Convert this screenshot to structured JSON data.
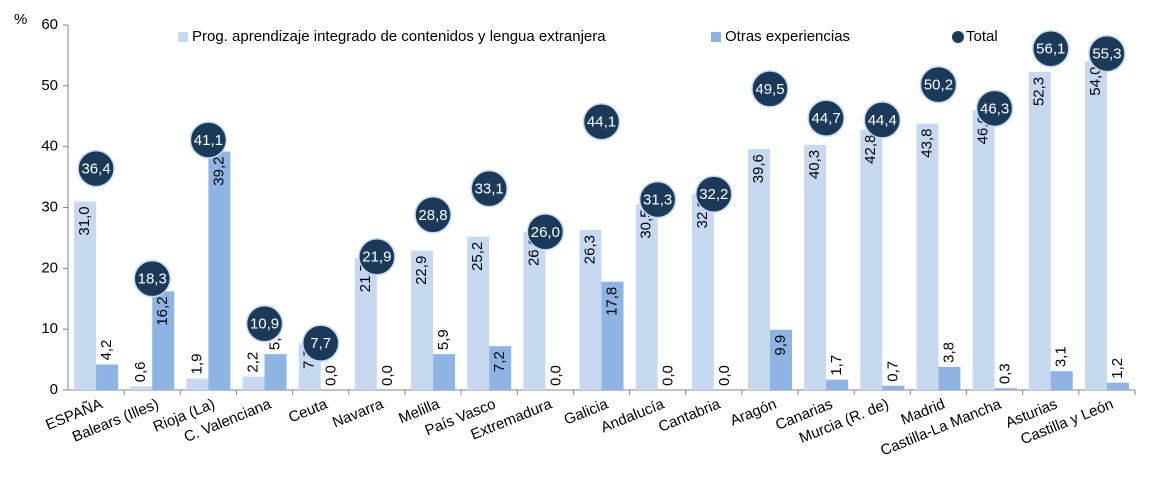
{
  "chart_data": {
    "type": "bar",
    "y_unit": "%",
    "categories": [
      "ESPAÑA",
      "Balears (Illes)",
      "Rioja (La)",
      "C. Valenciana",
      "Ceuta",
      "Navarra",
      "Melilla",
      "País Vasco",
      "Extremadura",
      "Galicia",
      "Andalucía",
      "Cantabria",
      "Aragón",
      "Canarias",
      "Murcia (R. de)",
      "Madrid",
      "Castilla-La Mancha",
      "Asturias",
      "Castilla y León"
    ],
    "series": [
      {
        "name": "Prog. aprendizaje integrado de contenidos y lengua extranjera",
        "color": "#c6d9f1",
        "values": [
          31.0,
          0.6,
          1.9,
          2.2,
          7.7,
          21.7,
          22.9,
          25.2,
          26.0,
          26.3,
          30.5,
          32.2,
          39.6,
          40.3,
          42.8,
          43.8,
          46.0,
          52.3,
          54.0
        ],
        "value_labels": [
          "31,0",
          "0,6",
          "1,9",
          "2,2",
          "7,7",
          "21,7",
          "22,9",
          "25,2",
          "26,0",
          "26,3",
          "30,5",
          "32,2",
          "39,6",
          "40,3",
          "42,8",
          "43,8",
          "46,0",
          "52,3",
          "54,0"
        ]
      },
      {
        "name": "Otras experiencias",
        "color": "#8db4e2",
        "values": [
          4.2,
          16.2,
          39.2,
          5.9,
          0.0,
          0.0,
          5.9,
          7.2,
          0.0,
          17.8,
          0.0,
          0.0,
          9.9,
          1.7,
          0.7,
          3.8,
          0.3,
          3.1,
          1.2
        ],
        "value_labels": [
          "4,2",
          "16,2",
          "39,2",
          "5,9",
          "0,0",
          "0,0",
          "5,9",
          "7,2",
          "0,0",
          "17,8",
          "0,0",
          "0,0",
          "9,9",
          "1,7",
          "0,7",
          "3,8",
          "0,3",
          "3,1",
          "1,2"
        ]
      },
      {
        "name": "Total",
        "type": "scatter",
        "color": "#1b3a5a",
        "values": [
          36.4,
          18.3,
          41.1,
          10.9,
          7.7,
          21.9,
          28.8,
          33.1,
          26.0,
          44.1,
          31.3,
          32.2,
          49.5,
          44.7,
          44.4,
          50.2,
          46.3,
          56.1,
          55.3
        ],
        "value_labels": [
          "36,4",
          "18,3",
          "41,1",
          "10,9",
          "7,7",
          "21,9",
          "28,8",
          "33,1",
          "26,0",
          "44,1",
          "31,3",
          "32,2",
          "49,5",
          "44,7",
          "44,4",
          "50,2",
          "46,3",
          "56,1",
          "55,3"
        ]
      }
    ],
    "ylim": [
      0,
      60
    ],
    "yticks": [
      0,
      10,
      20,
      30,
      40,
      50,
      60
    ],
    "grid": false,
    "legend": "top"
  }
}
